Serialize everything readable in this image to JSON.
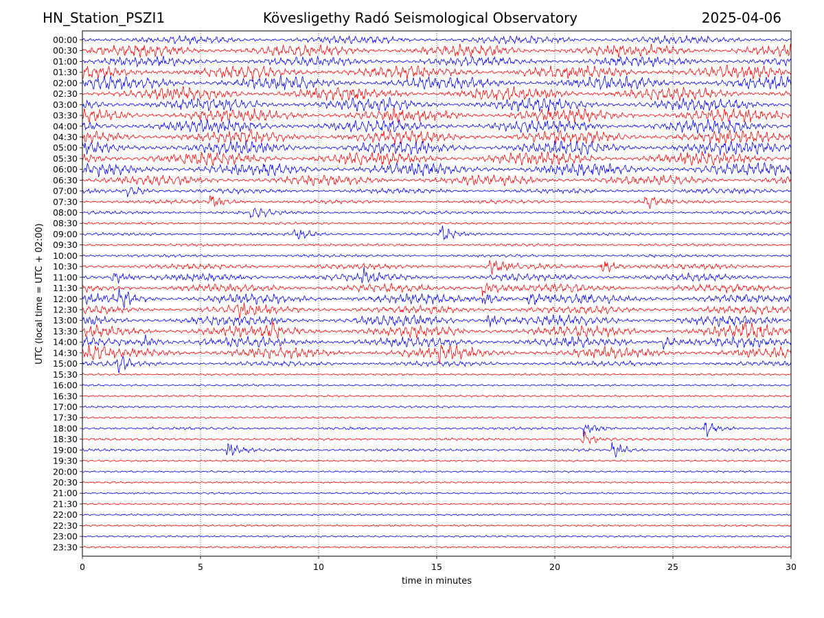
{
  "header": {
    "station": "HN_Station_PSZI1",
    "observatory": "Kövesligethy Radó Seismological Observatory",
    "date": "2025-04-06"
  },
  "chart_data": {
    "type": "line",
    "title": "Kövesligethy Radó Seismological Observatory",
    "xlabel": "time in minutes",
    "ylabel": "UTC (local time = UTC + 02:00)",
    "xlim": [
      0,
      30
    ],
    "x_ticks": [
      "0",
      "5",
      "10",
      "15",
      "20",
      "25",
      "30"
    ],
    "vertical_grid": "dotted at 5-minute intervals",
    "colors": [
      "#0000ff",
      "#ff0000"
    ],
    "row_labels": [
      "00:00",
      "00:30",
      "01:00",
      "01:30",
      "02:00",
      "02:30",
      "03:00",
      "03:30",
      "04:00",
      "04:30",
      "05:00",
      "05:30",
      "06:00",
      "06:30",
      "07:00",
      "07:30",
      "08:00",
      "08:30",
      "09:00",
      "09:30",
      "10:00",
      "10:30",
      "11:00",
      "11:30",
      "12:00",
      "12:30",
      "13:00",
      "13:30",
      "14:00",
      "14:30",
      "15:00",
      "15:30",
      "16:00",
      "16:30",
      "17:00",
      "17:30",
      "18:00",
      "18:30",
      "19:00",
      "19:30",
      "20:00",
      "20:30",
      "21:00",
      "21:30",
      "22:00",
      "22:30",
      "23:00",
      "23:30"
    ],
    "row_activity": [
      0.55,
      0.9,
      0.7,
      1.0,
      1.0,
      1.0,
      1.0,
      1.0,
      1.0,
      1.0,
      1.0,
      1.0,
      0.95,
      0.75,
      0.3,
      0.2,
      0.15,
      0.08,
      0.12,
      0.1,
      0.12,
      0.35,
      0.5,
      0.6,
      0.7,
      0.6,
      0.75,
      0.85,
      0.75,
      0.8,
      0.3,
      0.05,
      0.05,
      0.03,
      0.04,
      0.03,
      0.1,
      0.08,
      0.1,
      0.03,
      0.03,
      0.03,
      0.03,
      0.03,
      0.03,
      0.03,
      0.03,
      0.03
    ],
    "events": [
      {
        "row": "07:00",
        "minute": 2.0
      },
      {
        "row": "07:30",
        "minute": 5.5
      },
      {
        "row": "07:30",
        "minute": 23.9
      },
      {
        "row": "08:00",
        "minute": 7.2
      },
      {
        "row": "09:00",
        "minute": 9.0
      },
      {
        "row": "09:00",
        "minute": 15.2
      },
      {
        "row": "10:30",
        "minute": 17.3
      },
      {
        "row": "10:30",
        "minute": 22.0
      },
      {
        "row": "11:00",
        "minute": 1.3
      },
      {
        "row": "11:00",
        "minute": 11.8
      },
      {
        "row": "11:30",
        "minute": 17.0
      },
      {
        "row": "12:00",
        "minute": 1.6
      },
      {
        "row": "12:00",
        "minute": 17.0
      },
      {
        "row": "12:00",
        "minute": 18.9
      },
      {
        "row": "12:30",
        "minute": 6.6
      },
      {
        "row": "13:00",
        "minute": 17.2
      },
      {
        "row": "13:30",
        "minute": 8.0
      },
      {
        "row": "13:30",
        "minute": 28.0
      },
      {
        "row": "14:00",
        "minute": 2.6
      },
      {
        "row": "14:00",
        "minute": 24.6
      },
      {
        "row": "14:30",
        "minute": 0.3
      },
      {
        "row": "14:30",
        "minute": 15.2
      },
      {
        "row": "15:00",
        "minute": 1.5
      },
      {
        "row": "18:00",
        "minute": 21.3
      },
      {
        "row": "18:00",
        "minute": 26.4
      },
      {
        "row": "18:30",
        "minute": 21.2
      },
      {
        "row": "19:00",
        "minute": 6.2
      },
      {
        "row": "19:00",
        "minute": 22.5
      }
    ]
  }
}
